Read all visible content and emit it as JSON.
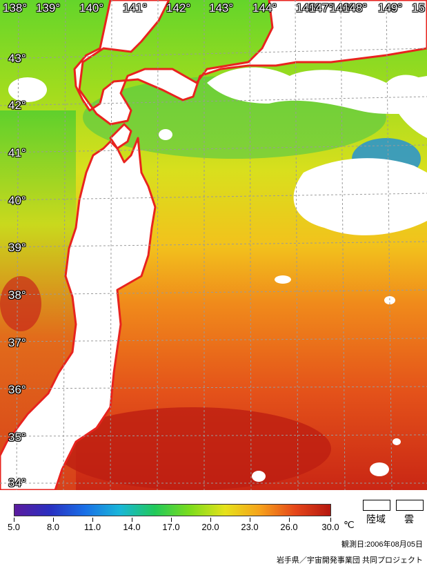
{
  "map": {
    "longitude_labels": [
      "138°",
      "139°",
      "140°",
      "141°",
      "142°",
      "143°",
      "144°",
      "145°",
      "146°",
      "147°",
      "148°",
      "149°",
      "15"
    ],
    "latitude_labels": [
      "43°",
      "42°",
      "41°",
      "40°",
      "39°",
      "38°",
      "37°",
      "36°",
      "35°",
      "34°"
    ],
    "colors": {
      "coastline": "#e8231e",
      "land": "#ffffff",
      "cloud": "#ffffff",
      "grid": "#9a9a9a"
    }
  },
  "colorbar": {
    "ticks": [
      "5.0",
      "8.0",
      "11.0",
      "14.0",
      "17.0",
      "20.0",
      "23.0",
      "26.0",
      "30.0"
    ],
    "unit": "℃",
    "gradient_colors": [
      "#5b1b9e",
      "#2a2fc0",
      "#1a6fe6",
      "#19b6d8",
      "#22c95a",
      "#7cdc1c",
      "#e6e21b",
      "#f6a11b",
      "#e5461a",
      "#b5170f"
    ]
  },
  "legend": {
    "land_label": "陸域",
    "cloud_label": "雲"
  },
  "observation": "観測日:2006年08月05日",
  "credit": "岩手県／宇宙開発事業団 共同プロジェクト"
}
